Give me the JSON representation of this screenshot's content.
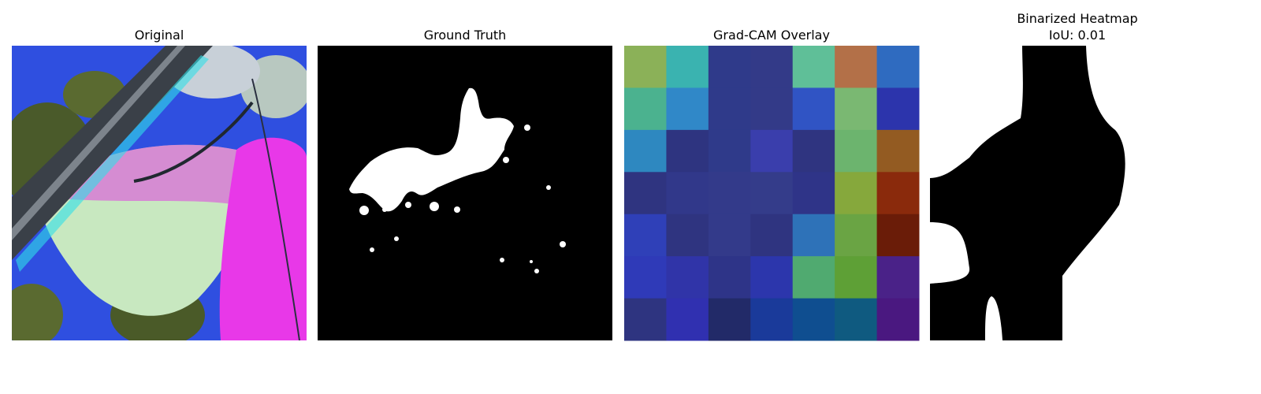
{
  "panels": [
    {
      "title": [
        "Original"
      ]
    },
    {
      "title": [
        "Ground Truth"
      ]
    },
    {
      "title": [
        "Grad-CAM Overlay"
      ]
    },
    {
      "title": [
        "Binarized Heatmap",
        "IoU: 0.01"
      ]
    }
  ]
}
